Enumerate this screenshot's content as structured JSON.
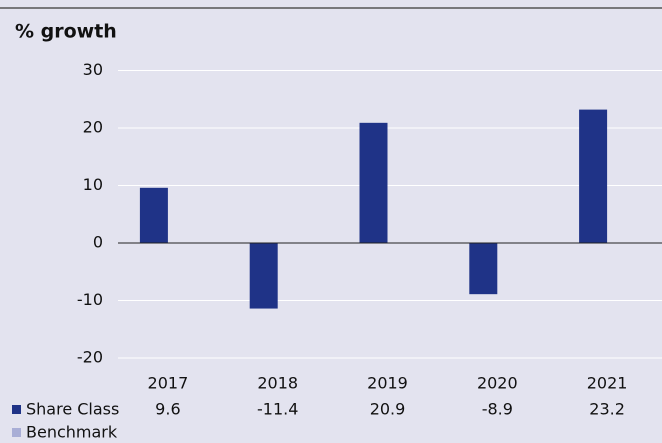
{
  "chart_data": {
    "type": "bar",
    "title": "% growth",
    "categories": [
      "2017",
      "2018",
      "2019",
      "2020",
      "2021"
    ],
    "series": [
      {
        "name": "Share Class",
        "color": "#1f3387",
        "values": [
          9.6,
          -11.4,
          20.9,
          -8.9,
          23.2
        ]
      },
      {
        "name": "Benchmark",
        "color": "#a9aed6",
        "values": [
          null,
          null,
          null,
          null,
          null
        ]
      }
    ],
    "ylim": [
      -20,
      30
    ],
    "yticks": [
      -20,
      -10,
      0,
      10,
      20,
      30
    ],
    "grid": true
  }
}
